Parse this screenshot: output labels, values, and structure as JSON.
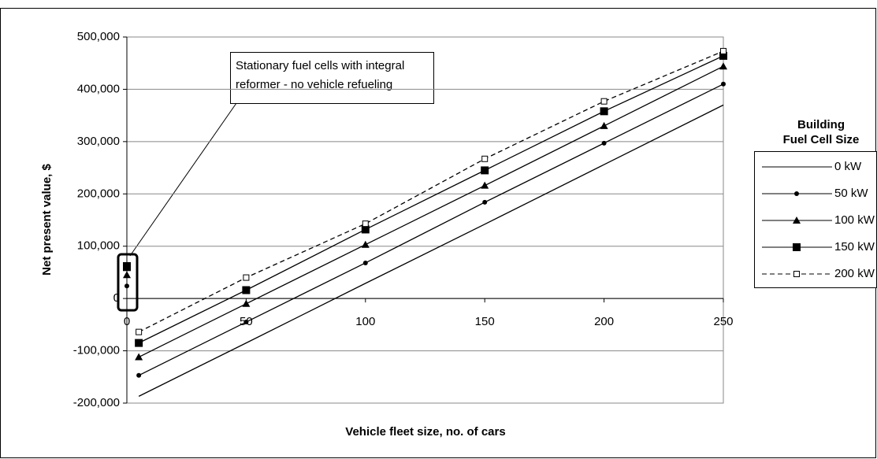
{
  "chart_data": {
    "type": "line",
    "y_axis_label": "Net present value, $",
    "x_axis_label": "Vehicle fleet size, no. of cars",
    "legend_title": [
      "Building",
      "Fuel Cell Size"
    ],
    "annotation": [
      "Stationary fuel cells with integral",
      "reformer - no vehicle refueling"
    ],
    "x": [
      5,
      50,
      100,
      150,
      200,
      250
    ],
    "xlim": [
      0,
      250
    ],
    "xticks": [
      0,
      50,
      100,
      150,
      200,
      250
    ],
    "ylim": [
      -200000,
      500000
    ],
    "yticks": [
      {
        "value": -200000,
        "label": "-200,000"
      },
      {
        "value": -100000,
        "label": "-100,000"
      },
      0,
      {
        "value": 100000,
        "label": "100,000"
      },
      {
        "value": 200000,
        "label": "200,000"
      },
      {
        "value": 300000,
        "label": "300,000"
      },
      {
        "value": 400000,
        "label": "400,000"
      },
      {
        "value": 500000,
        "label": "500,000"
      }
    ],
    "grid": true,
    "stationary_x": 0,
    "series": [
      {
        "name": "0 kW",
        "color": "#000000",
        "marker": "none",
        "dashed": false,
        "stationary_value": 0,
        "values": [
          -187000,
          -85000,
          29000,
          142000,
          256000,
          370000
        ]
      },
      {
        "name": "50 kW",
        "color": "#000000",
        "marker": "circle",
        "dashed": false,
        "stationary_value": 24000,
        "values": [
          -147000,
          -45000,
          68000,
          184000,
          297000,
          410000
        ]
      },
      {
        "name": "100 kW",
        "color": "#000000",
        "marker": "triangle",
        "dashed": false,
        "stationary_value": 45000,
        "values": [
          -112000,
          -10000,
          103000,
          216000,
          330000,
          444000
        ]
      },
      {
        "name": "150 kW",
        "color": "#000000",
        "marker": "square",
        "dashed": false,
        "stationary_value": 60000,
        "values": [
          -85000,
          16000,
          132000,
          245000,
          358000,
          464000
        ]
      },
      {
        "name": "200 kW",
        "color": "#000000",
        "marker": "open-square",
        "dashed": true,
        "stationary_value": 62000,
        "values": [
          -64000,
          40000,
          143000,
          267000,
          377000,
          473000
        ]
      }
    ]
  }
}
